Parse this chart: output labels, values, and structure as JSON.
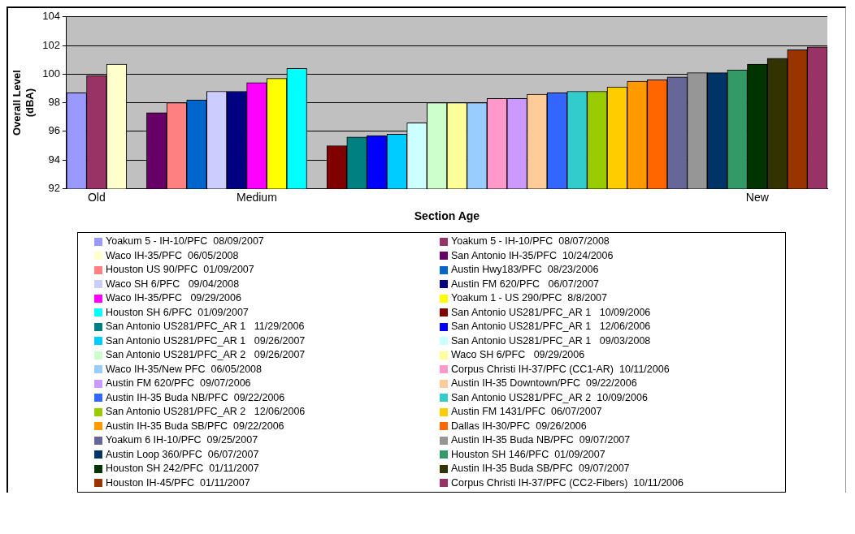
{
  "chart_data": {
    "type": "bar",
    "xlabel": "Section Age",
    "ylabel": "Overall Level (dBA)",
    "categories": [
      null,
      "Old",
      null,
      null,
      null,
      null,
      null,
      null,
      null,
      "Medium",
      null,
      null,
      null,
      null,
      null,
      null,
      null,
      null,
      null,
      null,
      null,
      null,
      null,
      null,
      null,
      null,
      null,
      null,
      null,
      null,
      null,
      null,
      null,
      null,
      "New",
      null,
      null,
      null
    ],
    "ylim": [
      92,
      104
    ],
    "yticks": [
      92,
      94,
      96,
      98,
      100,
      102,
      104
    ],
    "grid": "y",
    "legend": "bottom",
    "series": [
      {
        "name": "Yoakum 5 - IH-10/PFC  08/09/2007",
        "color": "#9999ff",
        "values": [
          98.7,
          null,
          null,
          null,
          null,
          null,
          null,
          null,
          null,
          null,
          null,
          null,
          null,
          null,
          null,
          null,
          null,
          null,
          null,
          null,
          null,
          null,
          null,
          null,
          null,
          null,
          null,
          null,
          null,
          null,
          null,
          null,
          null,
          null,
          null,
          null,
          null,
          null
        ]
      },
      {
        "name": "Yoakum 5 - IH-10/PFC  08/07/2008",
        "color": "#993366",
        "values": [
          null,
          99.9,
          null,
          null,
          null,
          null,
          null,
          null,
          null,
          null,
          null,
          null,
          null,
          null,
          null,
          null,
          null,
          null,
          null,
          null,
          null,
          null,
          null,
          null,
          null,
          null,
          null,
          null,
          null,
          null,
          null,
          null,
          null,
          null,
          null,
          null,
          null,
          null
        ]
      },
      {
        "name": "Waco IH-35/PFC  06/05/2008",
        "color": "#ffffcc",
        "values": [
          null,
          null,
          100.7,
          null,
          null,
          null,
          null,
          null,
          null,
          null,
          null,
          null,
          null,
          null,
          null,
          null,
          null,
          null,
          null,
          null,
          null,
          null,
          null,
          null,
          null,
          null,
          null,
          null,
          null,
          null,
          null,
          null,
          null,
          null,
          null,
          null,
          null,
          null
        ]
      },
      {
        "name": "San Antonio IH-35/PFC  10/24/2006",
        "color": "#660066",
        "values": [
          null,
          null,
          null,
          null,
          97.3,
          null,
          null,
          null,
          null,
          null,
          null,
          null,
          null,
          null,
          null,
          null,
          null,
          null,
          null,
          null,
          null,
          null,
          null,
          null,
          null,
          null,
          null,
          null,
          null,
          null,
          null,
          null,
          null,
          null,
          null,
          null,
          null,
          null
        ]
      },
      {
        "name": "Houston US 90/PFC  01/09/2007",
        "color": "#ff8080",
        "values": [
          null,
          null,
          null,
          null,
          null,
          98.0,
          null,
          null,
          null,
          null,
          null,
          null,
          null,
          null,
          null,
          null,
          null,
          null,
          null,
          null,
          null,
          null,
          null,
          null,
          null,
          null,
          null,
          null,
          null,
          null,
          null,
          null,
          null,
          null,
          null,
          null,
          null,
          null
        ]
      },
      {
        "name": "Austin Hwy183/PFC  08/23/2006",
        "color": "#0066cc",
        "values": [
          null,
          null,
          null,
          null,
          null,
          null,
          98.2,
          null,
          null,
          null,
          null,
          null,
          null,
          null,
          null,
          null,
          null,
          null,
          null,
          null,
          null,
          null,
          null,
          null,
          null,
          null,
          null,
          null,
          null,
          null,
          null,
          null,
          null,
          null,
          null,
          null,
          null,
          null
        ]
      },
      {
        "name": "Waco SH 6/PFC   09/04/2008",
        "color": "#ccccff",
        "values": [
          null,
          null,
          null,
          null,
          null,
          null,
          null,
          98.8,
          null,
          null,
          null,
          null,
          null,
          null,
          null,
          null,
          null,
          null,
          null,
          null,
          null,
          null,
          null,
          null,
          null,
          null,
          null,
          null,
          null,
          null,
          null,
          null,
          null,
          null,
          null,
          null,
          null,
          null
        ]
      },
      {
        "name": "Austin FM 620/PFC   06/07/2007",
        "color": "#000080",
        "values": [
          null,
          null,
          null,
          null,
          null,
          null,
          null,
          null,
          98.8,
          null,
          null,
          null,
          null,
          null,
          null,
          null,
          null,
          null,
          null,
          null,
          null,
          null,
          null,
          null,
          null,
          null,
          null,
          null,
          null,
          null,
          null,
          null,
          null,
          null,
          null,
          null,
          null,
          null
        ]
      },
      {
        "name": "Waco IH-35/PFC   09/29/2006",
        "color": "#ff00ff",
        "values": [
          null,
          null,
          null,
          null,
          null,
          null,
          null,
          null,
          null,
          99.4,
          null,
          null,
          null,
          null,
          null,
          null,
          null,
          null,
          null,
          null,
          null,
          null,
          null,
          null,
          null,
          null,
          null,
          null,
          null,
          null,
          null,
          null,
          null,
          null,
          null,
          null,
          null,
          null
        ]
      },
      {
        "name": "Yoakum 1 - US 290/PFC  8/8/2007",
        "color": "#ffff00",
        "values": [
          null,
          null,
          null,
          null,
          null,
          null,
          null,
          null,
          null,
          null,
          99.7,
          null,
          null,
          null,
          null,
          null,
          null,
          null,
          null,
          null,
          null,
          null,
          null,
          null,
          null,
          null,
          null,
          null,
          null,
          null,
          null,
          null,
          null,
          null,
          null,
          null,
          null,
          null
        ]
      },
      {
        "name": "Houston SH 6/PFC  01/09/2007",
        "color": "#00ffff",
        "values": [
          null,
          null,
          null,
          null,
          null,
          null,
          null,
          null,
          null,
          null,
          null,
          100.4,
          null,
          null,
          null,
          null,
          null,
          null,
          null,
          null,
          null,
          null,
          null,
          null,
          null,
          null,
          null,
          null,
          null,
          null,
          null,
          null,
          null,
          null,
          null,
          null,
          null,
          null
        ]
      },
      {
        "name": "San Antonio US281/PFC_AR 1   10/09/2006",
        "color": "#800000",
        "values": [
          null,
          null,
          null,
          null,
          null,
          null,
          null,
          null,
          null,
          null,
          null,
          null,
          null,
          95.0,
          null,
          null,
          null,
          null,
          null,
          null,
          null,
          null,
          null,
          null,
          null,
          null,
          null,
          null,
          null,
          null,
          null,
          null,
          null,
          null,
          null,
          null,
          null,
          null
        ]
      },
      {
        "name": "San Antonio US281/PFC_AR 1   11/29/2006",
        "color": "#008080",
        "values": [
          null,
          null,
          null,
          null,
          null,
          null,
          null,
          null,
          null,
          null,
          null,
          null,
          null,
          null,
          95.6,
          null,
          null,
          null,
          null,
          null,
          null,
          null,
          null,
          null,
          null,
          null,
          null,
          null,
          null,
          null,
          null,
          null,
          null,
          null,
          null,
          null,
          null,
          null
        ]
      },
      {
        "name": "San Antonio US281/PFC_AR 1   12/06/2006",
        "color": "#0000ff",
        "values": [
          null,
          null,
          null,
          null,
          null,
          null,
          null,
          null,
          null,
          null,
          null,
          null,
          null,
          null,
          null,
          95.7,
          null,
          null,
          null,
          null,
          null,
          null,
          null,
          null,
          null,
          null,
          null,
          null,
          null,
          null,
          null,
          null,
          null,
          null,
          null,
          null,
          null,
          null
        ]
      },
      {
        "name": "San Antonio US281/PFC_AR 1   09/26/2007",
        "color": "#00ccff",
        "values": [
          null,
          null,
          null,
          null,
          null,
          null,
          null,
          null,
          null,
          null,
          null,
          null,
          null,
          null,
          null,
          null,
          95.8,
          null,
          null,
          null,
          null,
          null,
          null,
          null,
          null,
          null,
          null,
          null,
          null,
          null,
          null,
          null,
          null,
          null,
          null,
          null,
          null,
          null
        ]
      },
      {
        "name": "San Antonio US281/PFC_AR 1   09/03/2008",
        "color": "#ccffff",
        "values": [
          null,
          null,
          null,
          null,
          null,
          null,
          null,
          null,
          null,
          null,
          null,
          null,
          null,
          null,
          null,
          null,
          null,
          96.6,
          null,
          null,
          null,
          null,
          null,
          null,
          null,
          null,
          null,
          null,
          null,
          null,
          null,
          null,
          null,
          null,
          null,
          null,
          null,
          null
        ]
      },
      {
        "name": "San Antonio US281/PFC_AR 2   09/26/2007",
        "color": "#ccffcc",
        "values": [
          null,
          null,
          null,
          null,
          null,
          null,
          null,
          null,
          null,
          null,
          null,
          null,
          null,
          null,
          null,
          null,
          null,
          null,
          98.0,
          null,
          null,
          null,
          null,
          null,
          null,
          null,
          null,
          null,
          null,
          null,
          null,
          null,
          null,
          null,
          null,
          null,
          null,
          null
        ]
      },
      {
        "name": "Waco SH 6/PFC   09/29/2006",
        "color": "#ffff99",
        "values": [
          null,
          null,
          null,
          null,
          null,
          null,
          null,
          null,
          null,
          null,
          null,
          null,
          null,
          null,
          null,
          null,
          null,
          null,
          null,
          98.0,
          null,
          null,
          null,
          null,
          null,
          null,
          null,
          null,
          null,
          null,
          null,
          null,
          null,
          null,
          null,
          null,
          null,
          null
        ]
      },
      {
        "name": "Waco IH-35/New PFC  06/05/2008",
        "color": "#99ccff",
        "values": [
          null,
          null,
          null,
          null,
          null,
          null,
          null,
          null,
          null,
          null,
          null,
          null,
          null,
          null,
          null,
          null,
          null,
          null,
          null,
          null,
          98.0,
          null,
          null,
          null,
          null,
          null,
          null,
          null,
          null,
          null,
          null,
          null,
          null,
          null,
          null,
          null,
          null,
          null
        ]
      },
      {
        "name": "Corpus Christi IH-37/PFC (CC1-AR)  10/11/2006",
        "color": "#ff99cc",
        "values": [
          null,
          null,
          null,
          null,
          null,
          null,
          null,
          null,
          null,
          null,
          null,
          null,
          null,
          null,
          null,
          null,
          null,
          null,
          null,
          null,
          null,
          98.3,
          null,
          null,
          null,
          null,
          null,
          null,
          null,
          null,
          null,
          null,
          null,
          null,
          null,
          null,
          null,
          null
        ]
      },
      {
        "name": "Austin FM 620/PFC  09/07/2006",
        "color": "#cc99ff",
        "values": [
          null,
          null,
          null,
          null,
          null,
          null,
          null,
          null,
          null,
          null,
          null,
          null,
          null,
          null,
          null,
          null,
          null,
          null,
          null,
          null,
          null,
          null,
          98.3,
          null,
          null,
          null,
          null,
          null,
          null,
          null,
          null,
          null,
          null,
          null,
          null,
          null,
          null,
          null
        ]
      },
      {
        "name": "Austin IH-35 Downtown/PFC  09/22/2006",
        "color": "#ffcc99",
        "values": [
          null,
          null,
          null,
          null,
          null,
          null,
          null,
          null,
          null,
          null,
          null,
          null,
          null,
          null,
          null,
          null,
          null,
          null,
          null,
          null,
          null,
          null,
          null,
          98.6,
          null,
          null,
          null,
          null,
          null,
          null,
          null,
          null,
          null,
          null,
          null,
          null,
          null,
          null
        ]
      },
      {
        "name": "Austin IH-35 Buda NB/PFC  09/22/2006",
        "color": "#3366ff",
        "values": [
          null,
          null,
          null,
          null,
          null,
          null,
          null,
          null,
          null,
          null,
          null,
          null,
          null,
          null,
          null,
          null,
          null,
          null,
          null,
          null,
          null,
          null,
          null,
          null,
          98.7,
          null,
          null,
          null,
          null,
          null,
          null,
          null,
          null,
          null,
          null,
          null,
          null,
          null
        ]
      },
      {
        "name": "San Antonio US281/PFC_AR 2  10/09/2006",
        "color": "#33cccc",
        "values": [
          null,
          null,
          null,
          null,
          null,
          null,
          null,
          null,
          null,
          null,
          null,
          null,
          null,
          null,
          null,
          null,
          null,
          null,
          null,
          null,
          null,
          null,
          null,
          null,
          null,
          98.8,
          null,
          null,
          null,
          null,
          null,
          null,
          null,
          null,
          null,
          null,
          null,
          null
        ]
      },
      {
        "name": "San Antonio US281/PFC_AR 2   12/06/2006",
        "color": "#99cc00",
        "values": [
          null,
          null,
          null,
          null,
          null,
          null,
          null,
          null,
          null,
          null,
          null,
          null,
          null,
          null,
          null,
          null,
          null,
          null,
          null,
          null,
          null,
          null,
          null,
          null,
          null,
          null,
          98.8,
          null,
          null,
          null,
          null,
          null,
          null,
          null,
          null,
          null,
          null,
          null
        ]
      },
      {
        "name": "Austin FM 1431/PFC  06/07/2007",
        "color": "#ffcc00",
        "values": [
          null,
          null,
          null,
          null,
          null,
          null,
          null,
          null,
          null,
          null,
          null,
          null,
          null,
          null,
          null,
          null,
          null,
          null,
          null,
          null,
          null,
          null,
          null,
          null,
          null,
          null,
          null,
          99.1,
          null,
          null,
          null,
          null,
          null,
          null,
          null,
          null,
          null,
          null
        ]
      },
      {
        "name": "Austin IH-35 Buda SB/PFC  09/22/2006",
        "color": "#ff9900",
        "values": [
          null,
          null,
          null,
          null,
          null,
          null,
          null,
          null,
          null,
          null,
          null,
          null,
          null,
          null,
          null,
          null,
          null,
          null,
          null,
          null,
          null,
          null,
          null,
          null,
          null,
          null,
          null,
          null,
          99.5,
          null,
          null,
          null,
          null,
          null,
          null,
          null,
          null,
          null
        ]
      },
      {
        "name": "Dallas IH-30/PFC  09/26/2006",
        "color": "#ff6600",
        "values": [
          null,
          null,
          null,
          null,
          null,
          null,
          null,
          null,
          null,
          null,
          null,
          null,
          null,
          null,
          null,
          null,
          null,
          null,
          null,
          null,
          null,
          null,
          null,
          null,
          null,
          null,
          null,
          null,
          null,
          99.6,
          null,
          null,
          null,
          null,
          null,
          null,
          null,
          null
        ]
      },
      {
        "name": "Yoakum 6 IH-10/PFC  09/25/2007",
        "color": "#666699",
        "values": [
          null,
          null,
          null,
          null,
          null,
          null,
          null,
          null,
          null,
          null,
          null,
          null,
          null,
          null,
          null,
          null,
          null,
          null,
          null,
          null,
          null,
          null,
          null,
          null,
          null,
          null,
          null,
          null,
          null,
          null,
          99.8,
          null,
          null,
          null,
          null,
          null,
          null,
          null
        ]
      },
      {
        "name": "Austin IH-35 Buda NB/PFC  09/07/2007",
        "color": "#969696",
        "values": [
          null,
          null,
          null,
          null,
          null,
          null,
          null,
          null,
          null,
          null,
          null,
          null,
          null,
          null,
          null,
          null,
          null,
          null,
          null,
          null,
          null,
          null,
          null,
          null,
          null,
          null,
          null,
          null,
          null,
          null,
          null,
          100.1,
          null,
          null,
          null,
          null,
          null,
          null
        ]
      },
      {
        "name": "Austin Loop 360/PFC  06/07/2007",
        "color": "#003366",
        "values": [
          null,
          null,
          null,
          null,
          null,
          null,
          null,
          null,
          null,
          null,
          null,
          null,
          null,
          null,
          null,
          null,
          null,
          null,
          null,
          null,
          null,
          null,
          null,
          null,
          null,
          null,
          null,
          null,
          null,
          null,
          null,
          null,
          100.1,
          null,
          null,
          null,
          null,
          null
        ]
      },
      {
        "name": "Houston SH 146/PFC  01/09/2007",
        "color": "#339966",
        "values": [
          null,
          null,
          null,
          null,
          null,
          null,
          null,
          null,
          null,
          null,
          null,
          null,
          null,
          null,
          null,
          null,
          null,
          null,
          null,
          null,
          null,
          null,
          null,
          null,
          null,
          null,
          null,
          null,
          null,
          null,
          null,
          null,
          null,
          100.3,
          null,
          null,
          null,
          null
        ]
      },
      {
        "name": "Houston SH 242/PFC  01/11/2007",
        "color": "#003300",
        "values": [
          null,
          null,
          null,
          null,
          null,
          null,
          null,
          null,
          null,
          null,
          null,
          null,
          null,
          null,
          null,
          null,
          null,
          null,
          null,
          null,
          null,
          null,
          null,
          null,
          null,
          null,
          null,
          null,
          null,
          null,
          null,
          null,
          null,
          null,
          100.7,
          null,
          null,
          null
        ]
      },
      {
        "name": "Austin IH-35 Buda SB/PFC  09/07/2007",
        "color": "#333300",
        "values": [
          null,
          null,
          null,
          null,
          null,
          null,
          null,
          null,
          null,
          null,
          null,
          null,
          null,
          null,
          null,
          null,
          null,
          null,
          null,
          null,
          null,
          null,
          null,
          null,
          null,
          null,
          null,
          null,
          null,
          null,
          null,
          null,
          null,
          null,
          null,
          101.1,
          null,
          null
        ]
      },
      {
        "name": "Houston IH-45/PFC  01/11/2007",
        "color": "#993300",
        "values": [
          null,
          null,
          null,
          null,
          null,
          null,
          null,
          null,
          null,
          null,
          null,
          null,
          null,
          null,
          null,
          null,
          null,
          null,
          null,
          null,
          null,
          null,
          null,
          null,
          null,
          null,
          null,
          null,
          null,
          null,
          null,
          null,
          null,
          null,
          null,
          null,
          101.7,
          null
        ]
      },
      {
        "name": "Corpus Christi IH-37/PFC (CC2-Fibers)  10/11/2006",
        "color": "#993366",
        "values": [
          null,
          null,
          null,
          null,
          null,
          null,
          null,
          null,
          null,
          null,
          null,
          null,
          null,
          null,
          null,
          null,
          null,
          null,
          null,
          null,
          null,
          null,
          null,
          null,
          null,
          null,
          null,
          null,
          null,
          null,
          null,
          null,
          null,
          null,
          null,
          null,
          null,
          101.9
        ]
      }
    ]
  }
}
